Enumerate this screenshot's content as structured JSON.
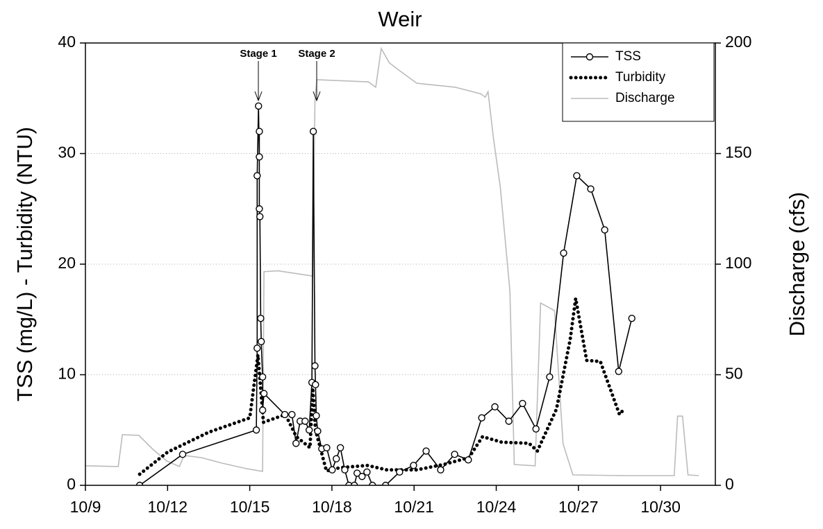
{
  "chart_data": {
    "type": "line",
    "title": "Weir",
    "y_label": "TSS (mg/L) - Turbidity (NTU)",
    "y2_label": "Discharge (cfs)",
    "xlim": [
      0,
      23
    ],
    "xticks": [
      {
        "value": 0,
        "label": "10/9"
      },
      {
        "value": 3,
        "label": "10/12"
      },
      {
        "value": 6,
        "label": "10/15"
      },
      {
        "value": 9,
        "label": "10/18"
      },
      {
        "value": 12,
        "label": "10/21"
      },
      {
        "value": 15,
        "label": "10/24"
      },
      {
        "value": 18,
        "label": "10/27"
      },
      {
        "value": 21,
        "label": "10/30"
      }
    ],
    "ylim": [
      0,
      40
    ],
    "yticks": [
      0,
      10,
      20,
      30,
      40
    ],
    "y2lim": [
      0,
      200
    ],
    "y2ticks": [
      0,
      50,
      100,
      150,
      200
    ],
    "grid": true,
    "legend": "upper right",
    "annotations": [
      "Stage 1",
      "Stage 2"
    ],
    "series": [
      {
        "name": "Discharge",
        "color": "#bbbbbb",
        "line_style": "solid",
        "marker": "none",
        "axis": "y2",
        "x": [
          0,
          1.2,
          1.35,
          1.95,
          2.46,
          2.97,
          3.43,
          3.6,
          4.24,
          5.0,
          5.89,
          6.47,
          6.52,
          7.03,
          8.3,
          8.38,
          8.45,
          10.33,
          10.6,
          10.8,
          11.1,
          11.47,
          12.1,
          13.5,
          14.44,
          14.6,
          14.7,
          14.9,
          15.15,
          15.5,
          15.66,
          16.42,
          16.62,
          17.13,
          17.44,
          17.8,
          19.7,
          21.5,
          21.62,
          21.8,
          22.0,
          22.4
        ],
        "values": [
          8.8,
          8.5,
          22.9,
          22.6,
          16.3,
          11,
          8.5,
          13.5,
          12.5,
          10,
          7.5,
          6.3,
          96.6,
          97,
          94.6,
          174,
          183.4,
          182.4,
          180,
          197.5,
          191,
          187.5,
          181.8,
          180,
          177,
          175.5,
          178,
          156.7,
          134.8,
          87.8,
          9.4,
          8.8,
          82.4,
          79,
          18.8,
          4.7,
          4.4,
          4.4,
          31.3,
          31.3,
          4.7,
          4.4
        ]
      },
      {
        "name": "Turbidity",
        "color": "#000000",
        "line_style": "dotted",
        "marker": "none",
        "x": [
          1.98,
          3.0,
          4.5,
          6.0,
          6.3,
          6.5,
          7.3,
          7.7,
          8.2,
          8.3,
          8.4,
          8.8,
          9.3,
          10.3,
          11.0,
          12.1,
          13.1,
          14.0,
          14.5,
          15.2,
          16.2,
          16.5,
          17.2,
          17.7,
          17.9,
          18.3,
          18.8,
          19.5,
          19.7
        ],
        "values": [
          1.0,
          3.0,
          4.8,
          6.1,
          11.8,
          5.7,
          6.4,
          4.4,
          3.4,
          8.8,
          5.0,
          1.3,
          1.6,
          1.8,
          1.4,
          1.4,
          1.9,
          2.5,
          4.4,
          3.9,
          3.8,
          3.1,
          6.9,
          13.2,
          16.9,
          11.3,
          11.2,
          6.4,
          7.0
        ]
      },
      {
        "name": "TSS",
        "color": "#000000",
        "line_style": "solid",
        "marker": "circle",
        "x": [
          1.98,
          3.55,
          6.24,
          6.27,
          6.27,
          6.32,
          6.35,
          6.35,
          6.35,
          6.37,
          6.4,
          6.42,
          6.47,
          6.47,
          6.52,
          7.28,
          7.54,
          7.69,
          7.84,
          8.02,
          8.17,
          8.27,
          8.32,
          8.38,
          8.4,
          8.43,
          8.48,
          8.63,
          8.81,
          9.01,
          9.16,
          9.31,
          9.47,
          9.62,
          9.82,
          9.92,
          10.1,
          10.28,
          10.48,
          10.96,
          11.47,
          11.98,
          12.44,
          12.97,
          13.48,
          13.98,
          14.47,
          14.95,
          15.46,
          15.96,
          16.45,
          16.95,
          17.46,
          17.94,
          18.45,
          18.96,
          19.47,
          19.95
        ],
        "values": [
          0,
          2.8,
          5.0,
          12.4,
          28,
          34.3,
          29.7,
          32,
          25,
          24.3,
          15.1,
          13,
          9.8,
          6.8,
          8.3,
          6.4,
          6.4,
          3.8,
          5.8,
          5.8,
          5.0,
          9.3,
          32,
          10.8,
          9.1,
          6.3,
          4.9,
          3.3,
          3.4,
          1.4,
          2.4,
          3.4,
          1.4,
          0,
          0,
          1.1,
          0.8,
          1.2,
          0,
          0,
          1.2,
          1.8,
          3.1,
          1.4,
          2.8,
          2.3,
          6.1,
          7.1,
          5.8,
          7.4,
          5.1,
          9.8,
          21,
          28,
          26.8,
          23.1,
          10.3,
          15.1
        ]
      }
    ]
  }
}
